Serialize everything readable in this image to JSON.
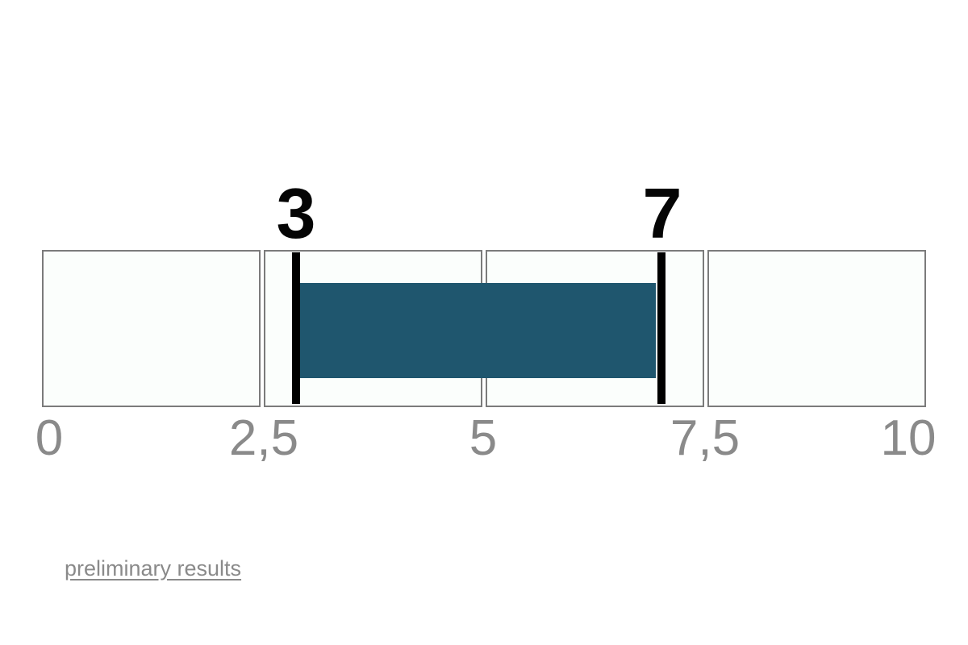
{
  "page": {
    "background": "#FFFFFF"
  },
  "chart_data": {
    "type": "bar",
    "subtype": "horizontal-range-indicator",
    "orientation": "horizontal",
    "title": "",
    "axis": {
      "min": 0,
      "max": 10,
      "tick_values": [
        0,
        2.5,
        5,
        7.5,
        10
      ],
      "tick_labels": [
        "0",
        "2,5",
        "5",
        "7,5",
        "10"
      ],
      "decimal_separator": ","
    },
    "segments": [
      {
        "from": 0,
        "to": 2.5
      },
      {
        "from": 2.5,
        "to": 5
      },
      {
        "from": 5,
        "to": 7.5
      },
      {
        "from": 7.5,
        "to": 10
      }
    ],
    "range": {
      "start": 3,
      "end": 7,
      "start_label": "3",
      "end_label": "7"
    },
    "legend": "off",
    "grid": "off",
    "colors": {
      "range_fill": "#1F566E",
      "marker": "#000000",
      "segment_fill": "#FBFEFC",
      "segment_border": "#7B7B7B",
      "tick_text": "#8A8A8A",
      "value_text": "#050505"
    }
  },
  "footer": {
    "link_label": "preliminary results",
    "link_color": "#8A8A8A"
  }
}
